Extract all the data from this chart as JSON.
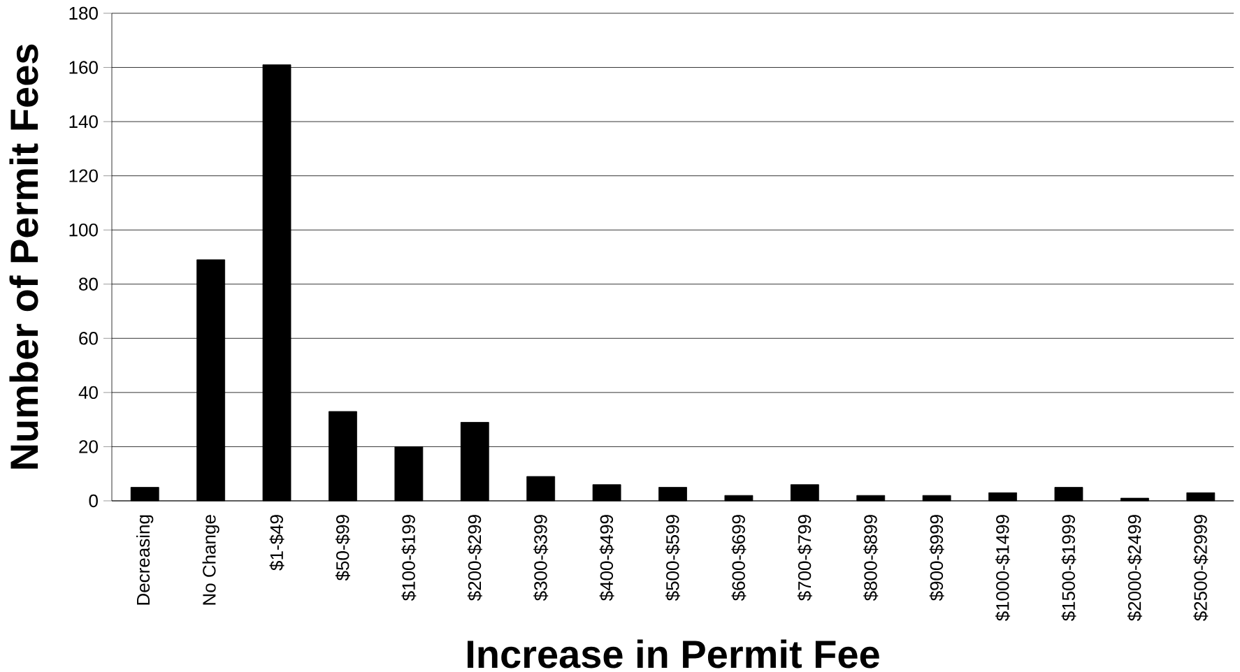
{
  "chart_data": {
    "type": "bar",
    "xlabel": "Increase in Permit Fee",
    "ylabel": "Number of Permit Fees",
    "categories": [
      "Decreasing",
      "No Change",
      "$1-$49",
      "$50-$99",
      "$100-$199",
      "$200-$299",
      "$300-$399",
      "$400-$499",
      "$500-$599",
      "$600-$699",
      "$700-$799",
      "$800-$899",
      "$900-$999",
      "$1000-$1499",
      "$1500-$1999",
      "$2000-$2499",
      "$2500-$2999"
    ],
    "values": [
      5,
      89,
      161,
      33,
      20,
      29,
      9,
      6,
      5,
      2,
      6,
      2,
      2,
      3,
      5,
      1,
      3
    ],
    "color": "#000000",
    "ylim": [
      0,
      180
    ],
    "yticks": [
      0,
      20,
      40,
      60,
      80,
      100,
      120,
      140,
      160,
      180
    ],
    "grid": "y"
  }
}
